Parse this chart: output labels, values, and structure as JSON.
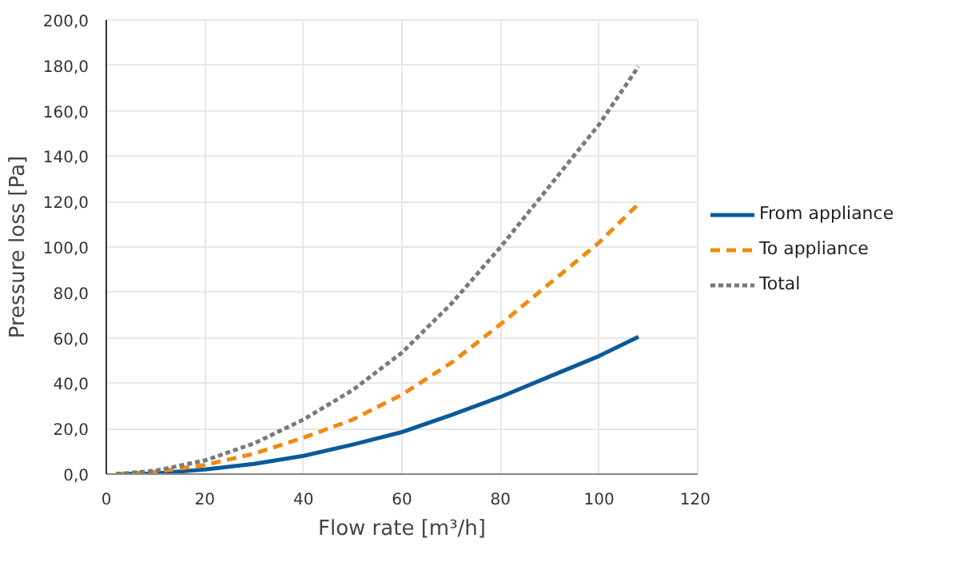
{
  "chart_data": {
    "type": "line",
    "xlabel": "Flow rate [m³/h]",
    "ylabel": "Pressure loss [Pa]",
    "xlim": [
      0,
      120
    ],
    "xticks": [
      0,
      20,
      40,
      60,
      80,
      100,
      120
    ],
    "ylim": [
      0,
      200
    ],
    "yticks": [
      {
        "value": 0,
        "label": "0,0"
      },
      {
        "value": 20,
        "label": "20,0"
      },
      {
        "value": 40,
        "label": "40,0"
      },
      {
        "value": 60,
        "label": "60,0"
      },
      {
        "value": 80,
        "label": "80,0"
      },
      {
        "value": 100,
        "label": "100,0"
      },
      {
        "value": 120,
        "label": "120,0"
      },
      {
        "value": 140,
        "label": "140,0"
      },
      {
        "value": 160,
        "label": "160,0"
      },
      {
        "value": 180,
        "label": "180,0"
      },
      {
        "value": 200,
        "label": "200,0"
      }
    ],
    "grid": true,
    "legend": "right",
    "marker": "none",
    "x": [
      2,
      10,
      20,
      30,
      40,
      50,
      60,
      70,
      80,
      90,
      100,
      108
    ],
    "series": [
      {
        "name": "From appliance",
        "color": "#0a5a9a",
        "line_style": "solid",
        "values": [
          0,
          0.3,
          2,
          4.5,
          8,
          13,
          18.5,
          26,
          34,
          43,
          52,
          60.5
        ]
      },
      {
        "name": "To appliance",
        "color": "#f08a12",
        "line_style": "dashed",
        "values": [
          0,
          1,
          4,
          9,
          16,
          24,
          35,
          49,
          66,
          84,
          102,
          119
        ]
      },
      {
        "name": "Total",
        "color": "#7a7a7a",
        "line_style": "dotted",
        "values": [
          0,
          1.5,
          6,
          13.5,
          24,
          37,
          53.5,
          75,
          100,
          127,
          154,
          179.5
        ]
      }
    ]
  }
}
